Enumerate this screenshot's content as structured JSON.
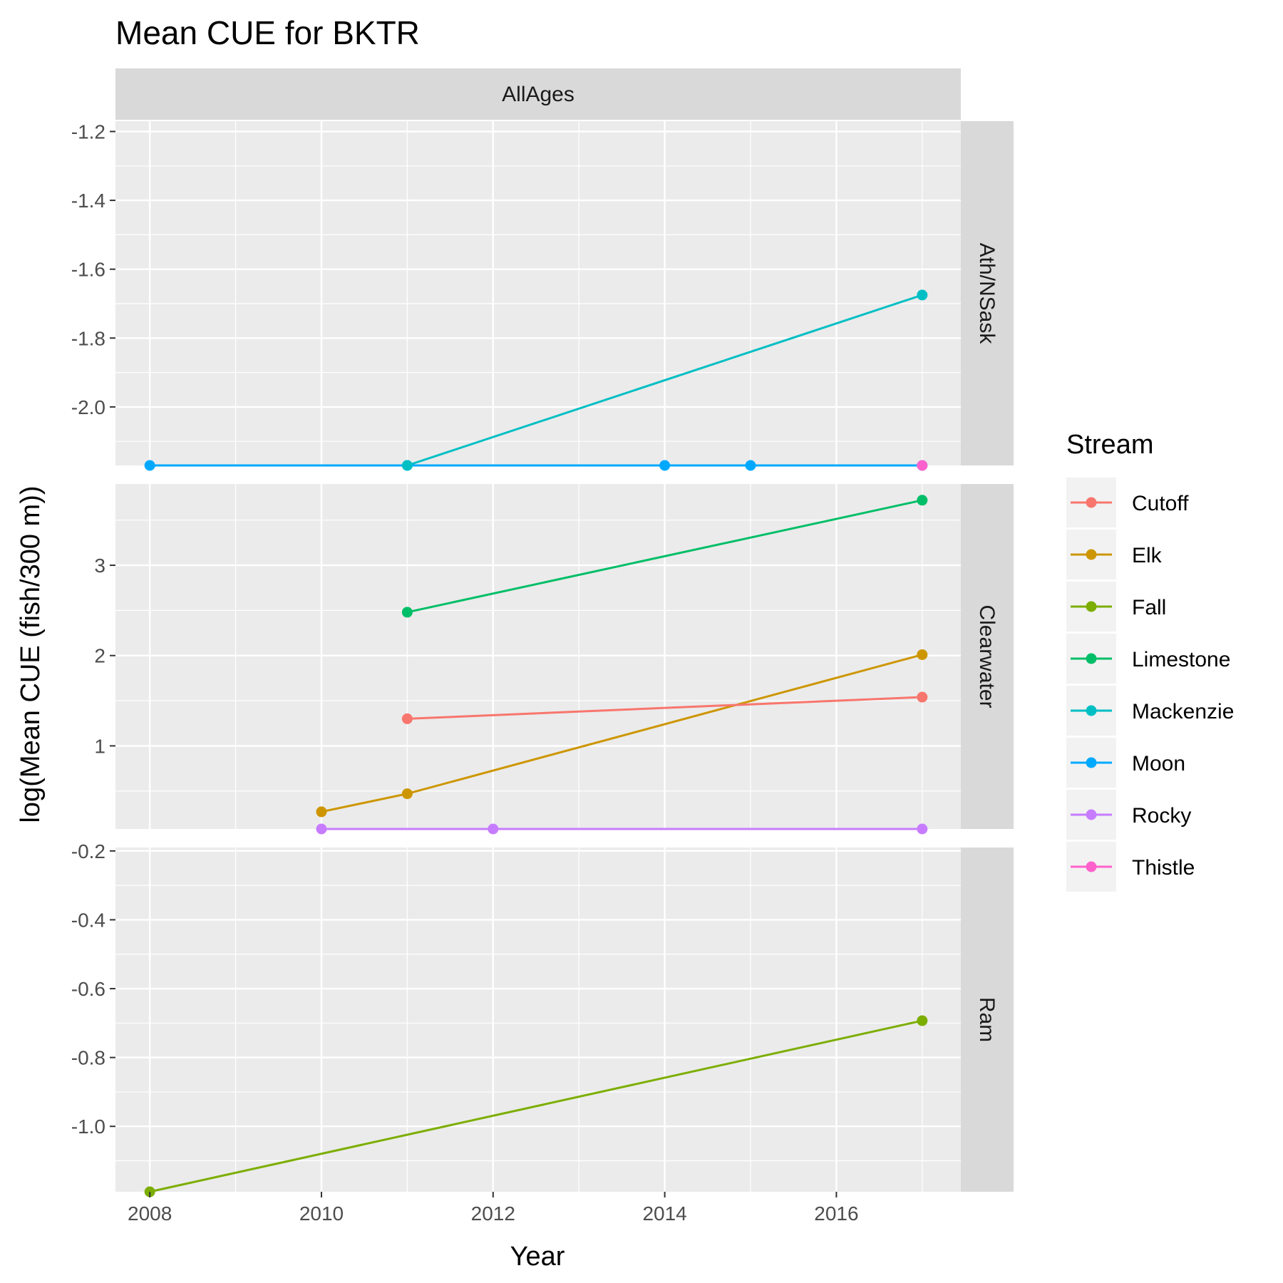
{
  "chart_data": {
    "type": "line",
    "title": "Mean CUE for BKTR",
    "xlabel": "Year",
    "ylabel": "log(Mean CUE (fish/300 m))",
    "column_facet": "AllAges",
    "x_ticks": [
      2008,
      2010,
      2012,
      2014,
      2016
    ],
    "xlim": [
      2007.6,
      2017.45
    ],
    "grid": true,
    "legend": {
      "title": "Stream",
      "position": "right",
      "entries": [
        {
          "name": "Cutoff",
          "color": "#F8766D"
        },
        {
          "name": "Elk",
          "color": "#CD9600"
        },
        {
          "name": "Fall",
          "color": "#7CAE00"
        },
        {
          "name": "Limestone",
          "color": "#00BE67"
        },
        {
          "name": "Mackenzie",
          "color": "#00BFC4"
        },
        {
          "name": "Moon",
          "color": "#00A9FF"
        },
        {
          "name": "Rocky",
          "color": "#C77CFF"
        },
        {
          "name": "Thistle",
          "color": "#FF61CC"
        }
      ]
    },
    "facets": [
      {
        "label": "Ath/NSask",
        "ylim": [
          -2.17,
          -1.17
        ],
        "y_ticks": [
          -2.0,
          -1.8,
          -1.6,
          -1.4,
          -1.2
        ],
        "y_tick_labels": [
          "-2.0",
          "-1.8",
          "-1.6",
          "-1.4",
          "-1.2"
        ],
        "series": [
          {
            "name": "Moon",
            "x": [
              2008,
              2011,
              2014,
              2015,
              2017
            ],
            "y": [
              -2.17,
              -2.17,
              -2.17,
              -2.17,
              -2.17
            ]
          },
          {
            "name": "Mackenzie",
            "x": [
              2011,
              2017
            ],
            "y": [
              -2.17,
              -1.675
            ]
          },
          {
            "name": "Thistle",
            "x": [
              2017
            ],
            "y": [
              -2.17
            ]
          }
        ]
      },
      {
        "label": "Clearwater",
        "ylim": [
          0.08,
          3.9
        ],
        "y_ticks": [
          1,
          2,
          3
        ],
        "y_tick_labels": [
          "1",
          "2",
          "3"
        ],
        "series": [
          {
            "name": "Rocky",
            "x": [
              2010,
              2012,
              2017
            ],
            "y": [
              0.08,
              0.08,
              0.08
            ]
          },
          {
            "name": "Elk",
            "x": [
              2010,
              2011,
              2017
            ],
            "y": [
              0.27,
              0.47,
              2.01
            ]
          },
          {
            "name": "Cutoff",
            "x": [
              2011,
              2017
            ],
            "y": [
              1.3,
              1.54
            ]
          },
          {
            "name": "Limestone",
            "x": [
              2011,
              2017
            ],
            "y": [
              2.48,
              3.72
            ]
          }
        ]
      },
      {
        "label": "Ram",
        "ylim": [
          -1.19,
          -0.19
        ],
        "y_ticks": [
          -1.0,
          -0.8,
          -0.6,
          -0.4,
          -0.2
        ],
        "y_tick_labels": [
          "-1.0",
          "-0.8",
          "-0.6",
          "-0.4",
          "-0.2"
        ],
        "series": [
          {
            "name": "Fall",
            "x": [
              2008,
              2017
            ],
            "y": [
              -1.19,
              -0.693
            ]
          }
        ]
      }
    ]
  }
}
